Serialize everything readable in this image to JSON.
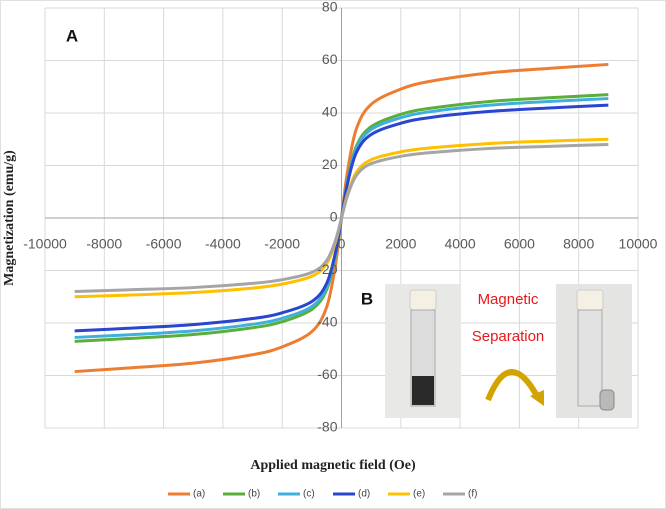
{
  "chart_data": {
    "type": "line",
    "x_label": "Applied magnetic field (Oe)",
    "y_label": "Magnetization (emu/g)",
    "annotations": [
      "A",
      "B",
      "Magnetic",
      "Separation"
    ],
    "x": [
      -9000,
      -7000,
      -5000,
      -3000,
      -2000,
      -1000,
      -500,
      -200,
      0,
      200,
      500,
      1000,
      2000,
      3000,
      5000,
      7000,
      9000
    ],
    "series": [
      {
        "name": "(a)",
        "color": "#ed7d31",
        "values": [
          -58.5,
          -57.0,
          -55.3,
          -52.1,
          -49.1,
          -43.3,
          -33.9,
          -17.6,
          0,
          17.6,
          33.9,
          43.3,
          49.1,
          52.1,
          55.3,
          57.0,
          58.5
        ]
      },
      {
        "name": "(b)",
        "color": "#5aae3c",
        "values": [
          -47,
          -45.8,
          -44.4,
          -41.8,
          -39.5,
          -34.8,
          -27.3,
          -14.1,
          0,
          14.1,
          27.3,
          34.8,
          39.5,
          41.8,
          44.4,
          45.8,
          47
        ]
      },
      {
        "name": "(c)",
        "color": "#3fb0dc",
        "values": [
          -45.5,
          -44.4,
          -43.0,
          -40.5,
          -38.2,
          -33.7,
          -26.4,
          -13.7,
          0,
          13.7,
          26.4,
          33.7,
          38.2,
          40.5,
          43.0,
          44.4,
          45.5
        ]
      },
      {
        "name": "(d)",
        "color": "#2a45d0",
        "values": [
          -43,
          -41.9,
          -40.6,
          -38.3,
          -36.1,
          -31.8,
          -24.9,
          -12.9,
          0,
          12.9,
          24.9,
          31.8,
          36.1,
          38.3,
          40.6,
          41.9,
          43
        ]
      },
      {
        "name": "(e)",
        "color": "#ffc000",
        "values": [
          -30,
          -29.3,
          -28.4,
          -26.7,
          -25.2,
          -22.2,
          -17.4,
          -9,
          0,
          9,
          17.4,
          22.2,
          25.2,
          26.7,
          28.4,
          29.3,
          30
        ]
      },
      {
        "name": "(f)",
        "color": "#a5a5a5",
        "values": [
          -28,
          -27.3,
          -26.5,
          -24.9,
          -23.5,
          -20.7,
          -16.2,
          -8.4,
          0,
          8.4,
          16.2,
          20.7,
          23.5,
          24.9,
          26.5,
          27.3,
          28
        ]
      }
    ],
    "xlim": [
      -10000,
      10000
    ],
    "xticks": [
      -10000,
      -8000,
      -6000,
      -4000,
      -2000,
      0,
      2000,
      4000,
      6000,
      8000,
      10000
    ],
    "ylim": [
      -80,
      80
    ],
    "yticks": [
      -80,
      -60,
      -40,
      -20,
      0,
      20,
      40,
      60,
      80
    ],
    "grid": true,
    "legend": "bottom"
  }
}
